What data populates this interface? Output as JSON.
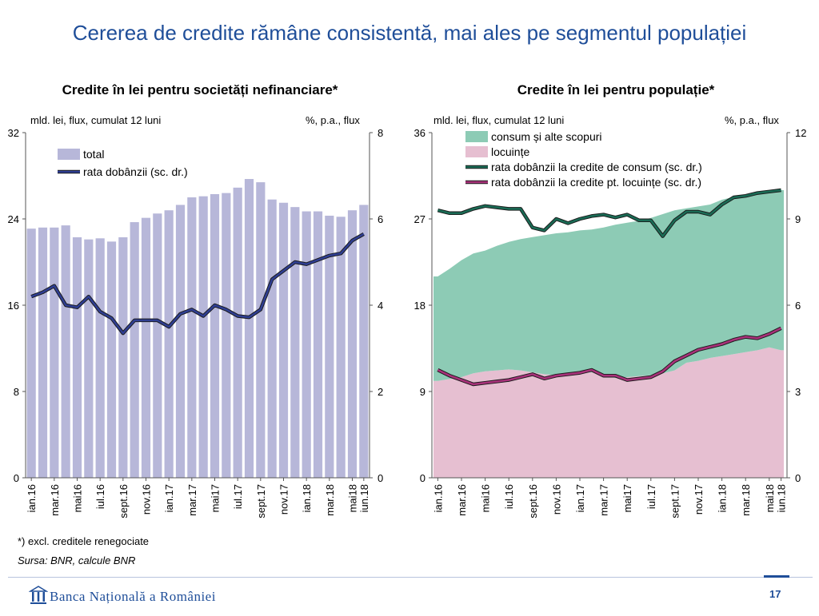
{
  "slide": {
    "title": "Cererea de credite rămâne consistentă, mai ales pe segmentul populației",
    "footnote": "*) excl. creditele renegociate",
    "source": "Sursa: BNR, calcule BNR",
    "bank_name": "Banca Națională a României",
    "page_number": "17"
  },
  "chart_data": [
    {
      "type": "bar",
      "title": "Credite în lei pentru societăți nefinanciare*",
      "left_unit": "mld. lei, flux, cumulat 12 luni",
      "right_unit": "%, p.a., flux",
      "ylim_left": [
        0,
        32
      ],
      "yticks_left": [
        "0",
        "8",
        "16",
        "24",
        "32"
      ],
      "ylim_right": [
        0,
        8
      ],
      "yticks_right": [
        "0",
        "2",
        "4",
        "6",
        "8"
      ],
      "months": [
        "ian.16",
        "feb.16",
        "mar.16",
        "apr.16",
        "mai16",
        "iun.16",
        "iul.16",
        "aug.16",
        "sept.16",
        "oct.16",
        "nov.16",
        "dec.16",
        "ian.17",
        "feb.17",
        "mar.17",
        "apr.17",
        "mai17",
        "iun.17",
        "iul.17",
        "aug.17",
        "sept.17",
        "oct.17",
        "nov.17",
        "dec.17",
        "ian.18",
        "feb.18",
        "mar.18",
        "apr.18",
        "mai18",
        "iun.18"
      ],
      "xtick_labels": [
        "ian.16",
        "mar.16",
        "mai16",
        "iul.16",
        "sept.16",
        "nov.16",
        "ian.17",
        "mar.17",
        "mai17",
        "iul.17",
        "sept.17",
        "nov.17",
        "ian.18",
        "mar.18",
        "mai18",
        "iun.18"
      ],
      "series": [
        {
          "name": "total",
          "kind": "bar",
          "axis": "left",
          "color": "#b7b7d9",
          "values": [
            23.1,
            23.2,
            23.2,
            23.4,
            22.3,
            22.1,
            22.2,
            21.9,
            22.3,
            23.7,
            24.1,
            24.5,
            24.8,
            25.3,
            26.0,
            26.1,
            26.3,
            26.4,
            26.9,
            27.7,
            27.4,
            25.8,
            25.5,
            25.1,
            24.7,
            24.7,
            24.3,
            24.2,
            24.8,
            25.3
          ]
        },
        {
          "name": "rata dobânzii (sc. dr.)",
          "kind": "line",
          "axis": "right",
          "color": "#2f3e92",
          "values": [
            4.2,
            4.3,
            4.45,
            4.0,
            3.95,
            4.2,
            3.85,
            3.7,
            3.35,
            3.65,
            3.65,
            3.65,
            3.5,
            3.8,
            3.9,
            3.75,
            4.0,
            3.9,
            3.75,
            3.72,
            3.9,
            4.6,
            4.8,
            5.0,
            4.95,
            5.05,
            5.15,
            5.2,
            5.5,
            5.65
          ]
        }
      ]
    },
    {
      "type": "area",
      "title": "Credite în lei pentru populație*",
      "left_unit": "mld. lei, flux, cumulat 12 luni",
      "right_unit": "%, p.a., flux",
      "ylim_left": [
        0,
        36
      ],
      "yticks_left": [
        "0",
        "9",
        "18",
        "27",
        "36"
      ],
      "ylim_right": [
        0,
        12
      ],
      "yticks_right": [
        "0",
        "3",
        "6",
        "9",
        "12"
      ],
      "months": [
        "ian.16",
        "feb.16",
        "mar.16",
        "apr.16",
        "mai16",
        "iun.16",
        "iul.16",
        "aug.16",
        "sept.16",
        "oct.16",
        "nov.16",
        "dec.16",
        "ian.17",
        "feb.17",
        "mar.17",
        "apr.17",
        "mai17",
        "iun.17",
        "iul.17",
        "aug.17",
        "sept.17",
        "oct.17",
        "nov.17",
        "dec.17",
        "ian.18",
        "feb.18",
        "mar.18",
        "apr.18",
        "mai18",
        "iun.18"
      ],
      "xtick_labels": [
        "ian.16",
        "mar.16",
        "mai16",
        "iul.16",
        "sept.16",
        "nov.16",
        "ian.17",
        "mar.17",
        "mai17",
        "iul.17",
        "sept.17",
        "nov.17",
        "ian.18",
        "mar.18",
        "mai18",
        "iun.18"
      ],
      "series": [
        {
          "name": "locuințe",
          "kind": "area",
          "axis": "left",
          "color": "#e6bfd1",
          "values": [
            10.1,
            10.3,
            10.5,
            10.9,
            11.1,
            11.2,
            11.3,
            11.2,
            11.0,
            10.8,
            10.7,
            10.8,
            10.9,
            11.0,
            10.7,
            10.4,
            10.5,
            10.6,
            10.7,
            10.9,
            11.2,
            12.0,
            12.2,
            12.5,
            12.7,
            12.9,
            13.1,
            13.3,
            13.6,
            13.3
          ]
        },
        {
          "name": "consum și alte scopuri",
          "kind": "area",
          "axis": "left",
          "color": "#8dcbb5",
          "values": [
            10.9,
            11.5,
            12.2,
            12.5,
            12.6,
            13.0,
            13.3,
            13.7,
            14.1,
            14.5,
            14.8,
            14.8,
            14.9,
            14.9,
            15.4,
            16.0,
            16.1,
            16.2,
            16.4,
            16.6,
            16.7,
            16.1,
            16.1,
            16.0,
            16.3,
            16.4,
            16.4,
            16.4,
            16.2,
            16.7
          ]
        },
        {
          "name": "rata dobânzii la credite de consum (sc. dr.)",
          "kind": "line",
          "axis": "right",
          "color": "#1a6b55",
          "values": [
            9.3,
            9.2,
            9.2,
            9.35,
            9.45,
            9.4,
            9.35,
            9.35,
            8.7,
            8.6,
            9.0,
            8.85,
            9.0,
            9.1,
            9.15,
            9.05,
            9.15,
            8.95,
            8.95,
            8.4,
            8.95,
            9.25,
            9.25,
            9.15,
            9.5,
            9.75,
            9.8,
            9.9,
            9.95,
            10.0
          ]
        },
        {
          "name": "rata dobânzii la credite pt. locuințe (sc. dr.)",
          "kind": "line",
          "axis": "right",
          "color": "#a8327a",
          "values": [
            3.75,
            3.55,
            3.4,
            3.25,
            3.3,
            3.35,
            3.4,
            3.5,
            3.6,
            3.45,
            3.55,
            3.6,
            3.65,
            3.75,
            3.55,
            3.55,
            3.4,
            3.45,
            3.5,
            3.7,
            4.05,
            4.25,
            4.45,
            4.55,
            4.65,
            4.8,
            4.9,
            4.85,
            5.0,
            5.2
          ]
        }
      ]
    }
  ]
}
